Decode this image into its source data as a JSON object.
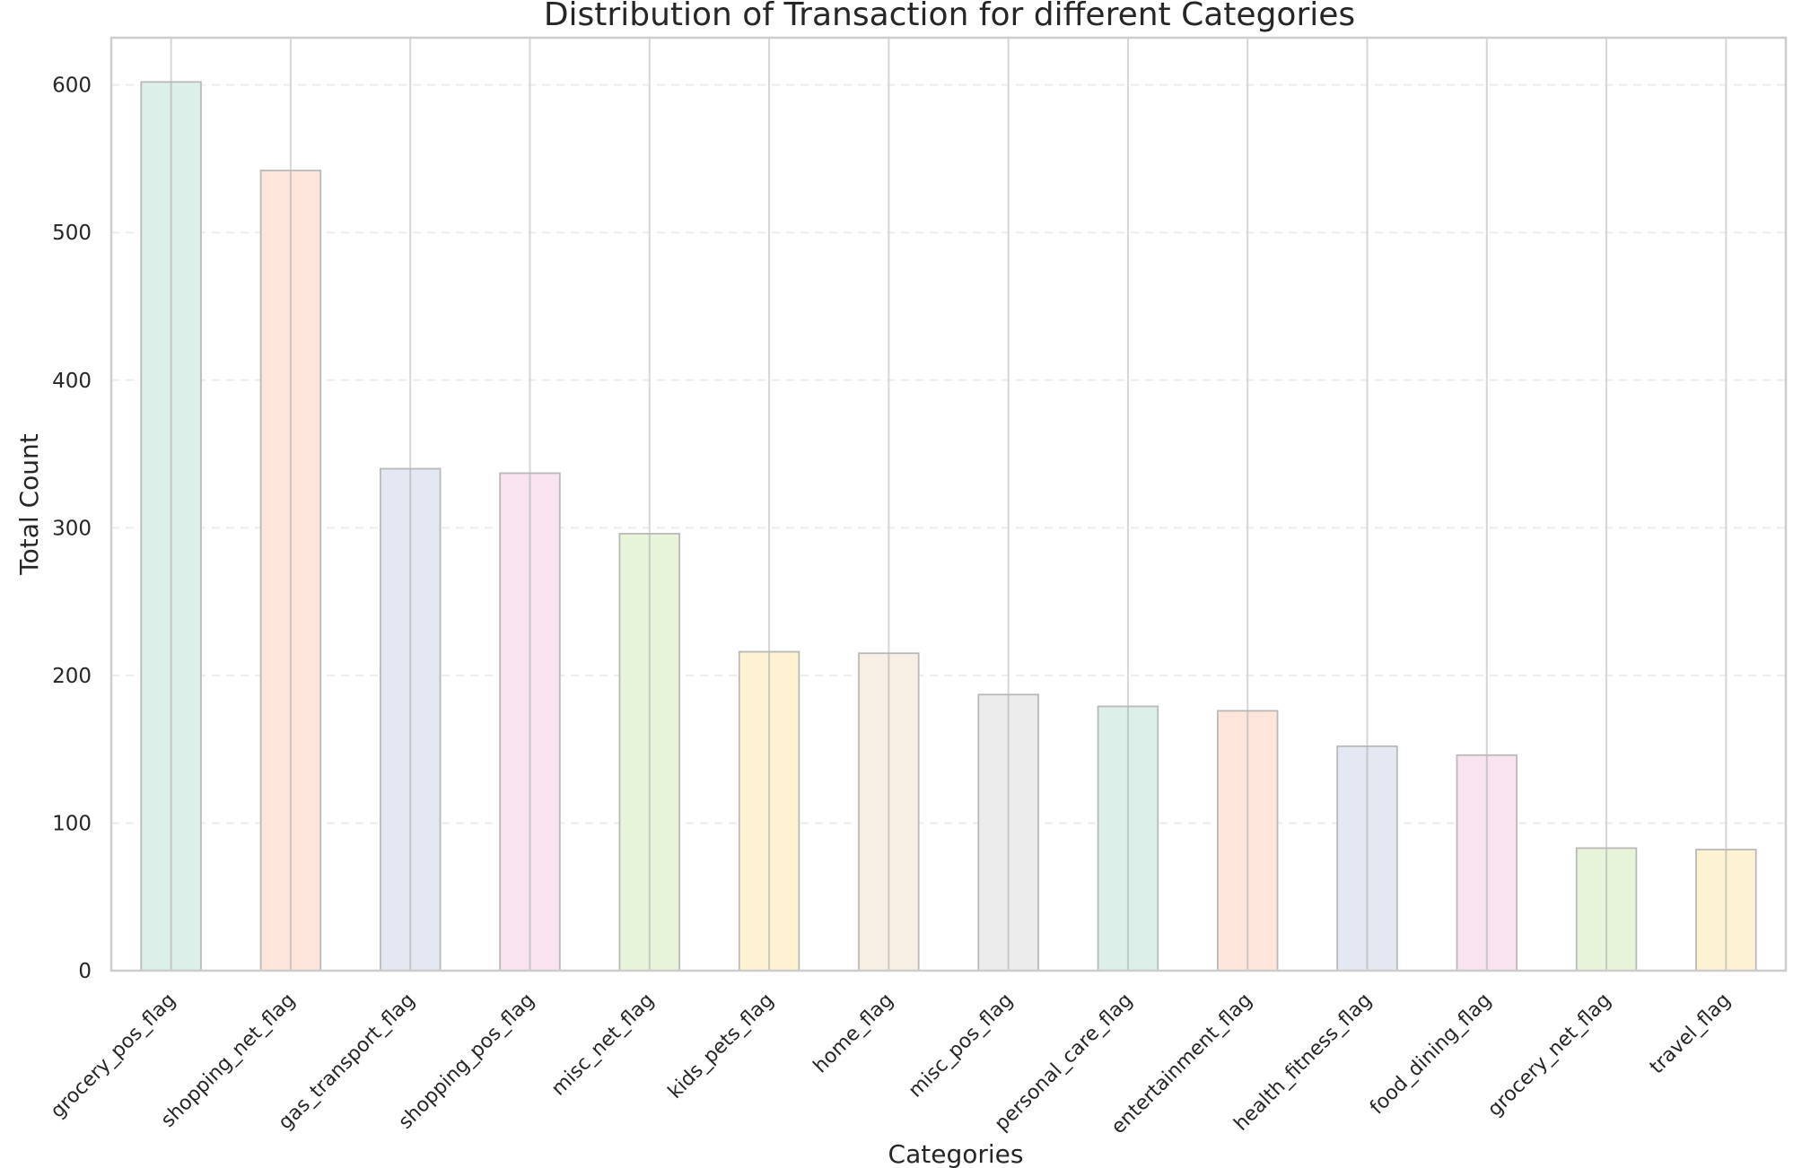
{
  "chart_data": {
    "type": "bar",
    "title": "Distribution of Transaction for different Categories",
    "xlabel": "Categories",
    "ylabel": "Total Count",
    "ylim": [
      0,
      632
    ],
    "yticks": [
      0,
      100,
      200,
      300,
      400,
      500,
      600
    ],
    "grid": true,
    "legend": "none",
    "categories": [
      "grocery_pos_flag",
      "shopping_net_flag",
      "gas_transport_flag",
      "shopping_pos_flag",
      "misc_net_flag",
      "kids_pets_flag",
      "home_flag",
      "misc_pos_flag",
      "personal_care_flag",
      "entertainment_flag",
      "health_fitness_flag",
      "food_dining_flag",
      "grocery_net_flag",
      "travel_flag"
    ],
    "values": [
      602,
      542,
      340,
      337,
      296,
      216,
      215,
      187,
      179,
      176,
      152,
      146,
      83,
      82
    ],
    "colors": [
      "#dcefe9",
      "#fee5dc",
      "#e4e8f2",
      "#f8e3ef",
      "#e8f4d9",
      "#fdf3d2",
      "#f8efe4",
      "#ececec",
      "#dcefe9",
      "#fee5dc",
      "#e4e8f2",
      "#f8e3ef",
      "#e8f4d9",
      "#fdf3d2"
    ]
  }
}
